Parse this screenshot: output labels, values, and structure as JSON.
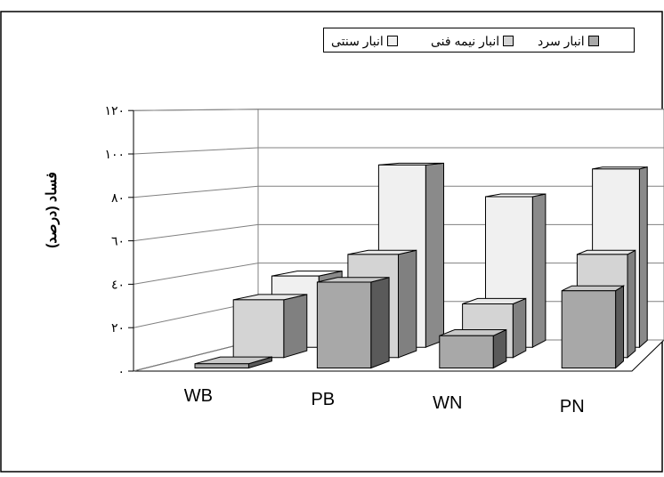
{
  "chart_data": {
    "type": "bar",
    "title": "",
    "ylabel": "فساد (درصد)",
    "xlabel": "",
    "categories": [
      "WB",
      "PB",
      "WN",
      "PN"
    ],
    "y_ticks": [
      "٠",
      "٢٠",
      "٤٠",
      "٦٠",
      "٨٠",
      "١٠٠",
      "١٢٠"
    ],
    "ylim": [
      0,
      120
    ],
    "grid": true,
    "legend_position": "top-right",
    "series": [
      {
        "name": "انبار سرد",
        "values": [
          2,
          40,
          15,
          36
        ],
        "color": "#a8a8a8",
        "side_color": "#5a5a5a"
      },
      {
        "name": "انبار نیمه فنی",
        "values": [
          28,
          50,
          26,
          50
        ],
        "color": "#d4d4d4",
        "side_color": "#808080"
      },
      {
        "name": "انبار سنتی",
        "values": [
          36,
          92,
          76,
          90
        ],
        "color": "#f0f0f0",
        "side_color": "#8a8a8a"
      }
    ]
  }
}
